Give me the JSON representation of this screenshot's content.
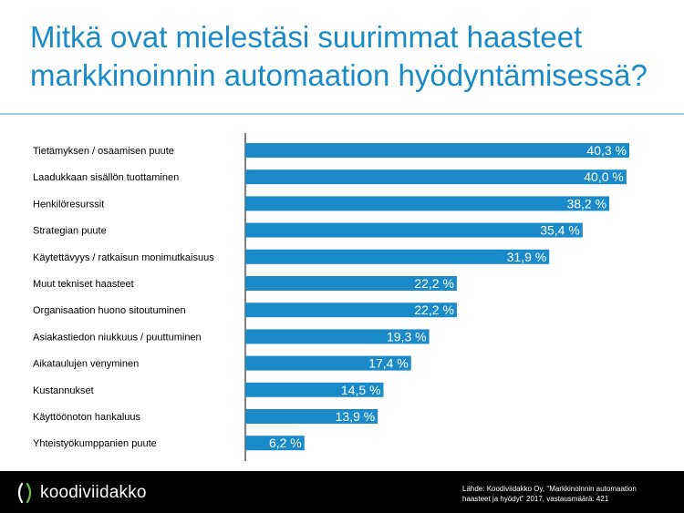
{
  "title": {
    "line1": "Mitkä ovat mielestäsi suurimmat haasteet",
    "line2": "markkinoinnin automaation hyödyntämisessä?"
  },
  "colors": {
    "title": "#1a8bc8",
    "bar": "#1a8bc8",
    "axis": "#000000",
    "label": "#000000",
    "value_label": "#ffffff",
    "footer_bg": "#000000"
  },
  "chart_data": {
    "type": "bar",
    "orientation": "horizontal",
    "categories": [
      "Tietämyksen / osaamisen puute",
      "Laadukkaan sisällön tuottaminen",
      "Henkilöresurssit",
      "Strategian puute",
      "Käytettävyys / ratkaisun monimutkaisuus",
      "Muut tekniset haasteet",
      "Organisaation huono sitoutuminen",
      "Asiakastiedon niukkuus / puuttuminen",
      "Aikataulujen venyminen",
      "Kustannukset",
      "Käyttöönoton hankaluus",
      "Yhteistyökumppanien puute"
    ],
    "values": [
      40.3,
      40.0,
      38.2,
      35.4,
      31.9,
      22.2,
      22.2,
      19.3,
      17.4,
      14.5,
      13.9,
      6.2
    ],
    "value_labels": [
      "40,3 %",
      "40,0 %",
      "38,2 %",
      "35,4 %",
      "31,9 %",
      "22,2 %",
      "22,2 %",
      "19,3 %",
      "17,4 %",
      "14,5 %",
      "13,9 %",
      "6,2 %"
    ],
    "xlim": [
      0,
      40.3
    ],
    "grid": false
  },
  "footer": {
    "logo_text": "koodiviidakko",
    "source_line1": "Lähde: Koodiviidakko Oy, \"Markkinoinnin automaation",
    "source_line2": "haasteet ja hyödyt\" 2017, vastausmäärä: 421"
  }
}
